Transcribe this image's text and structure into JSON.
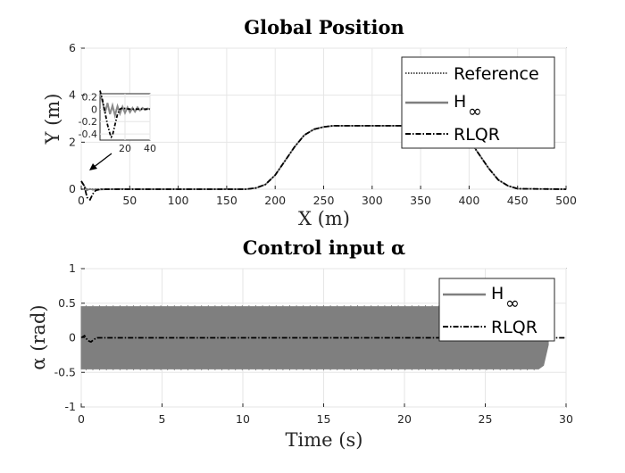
{
  "chart_data": [
    {
      "type": "line",
      "title": "Global Position",
      "xlabel": "X (m)",
      "ylabel": "Y (m)",
      "xlim": [
        0,
        500
      ],
      "ylim": [
        0,
        6
      ],
      "xticks": [
        "0",
        "50",
        "100",
        "150",
        "200",
        "250",
        "300",
        "350",
        "400",
        "450",
        "500"
      ],
      "yticks": [
        "0",
        "2",
        "4",
        "6"
      ],
      "grid": true,
      "legend_position": "top-right",
      "series": [
        {
          "name": "Reference",
          "style": "dotted",
          "color": "#555555",
          "x": [
            0,
            150,
            170,
            180,
            190,
            200,
            210,
            220,
            230,
            240,
            250,
            260,
            300,
            350,
            370,
            380,
            390,
            400,
            410,
            420,
            430,
            440,
            450,
            500
          ],
          "y": [
            0,
            0,
            0,
            0.05,
            0.2,
            0.6,
            1.2,
            1.8,
            2.3,
            2.55,
            2.65,
            2.7,
            2.7,
            2.7,
            2.7,
            2.65,
            2.5,
            2.1,
            1.5,
            0.9,
            0.4,
            0.15,
            0.02,
            0
          ]
        },
        {
          "name": "H",
          "name_subscript": "∞",
          "style": "solid",
          "color": "#7f7f7f",
          "x": [
            0,
            3,
            6,
            9,
            12,
            15,
            20,
            30,
            40,
            60,
            100,
            150,
            170,
            180,
            190,
            200,
            210,
            220,
            230,
            240,
            250,
            260,
            300,
            350,
            370,
            380,
            390,
            400,
            410,
            420,
            430,
            440,
            450,
            500
          ],
          "y": [
            0.3,
            0.15,
            -0.05,
            0.02,
            -0.03,
            0.01,
            -0.02,
            0,
            0.01,
            0,
            0,
            0,
            0,
            0.05,
            0.2,
            0.6,
            1.2,
            1.8,
            2.3,
            2.55,
            2.65,
            2.7,
            2.7,
            2.7,
            2.7,
            2.65,
            2.5,
            2.1,
            1.5,
            0.9,
            0.4,
            0.15,
            0.02,
            0
          ]
        },
        {
          "name": "RLQR",
          "style": "dashdot",
          "color": "#000000",
          "x": [
            0,
            3,
            6,
            9,
            12,
            15,
            20,
            30,
            40,
            60,
            100,
            150,
            170,
            180,
            190,
            200,
            210,
            220,
            230,
            240,
            250,
            260,
            300,
            350,
            370,
            380,
            390,
            400,
            410,
            420,
            430,
            440,
            450,
            500
          ],
          "y": [
            0.35,
            0.15,
            -0.35,
            -0.45,
            -0.2,
            -0.05,
            0,
            0,
            0,
            0,
            0,
            0,
            0,
            0.05,
            0.2,
            0.6,
            1.2,
            1.8,
            2.3,
            2.55,
            2.65,
            2.7,
            2.7,
            2.7,
            2.7,
            2.65,
            2.5,
            2.1,
            1.5,
            0.9,
            0.4,
            0.15,
            0.02,
            0
          ]
        }
      ],
      "inset": {
        "xlim": [
          0,
          40
        ],
        "ylim": [
          -0.5,
          0.25
        ],
        "xticks": [
          "20",
          "40"
        ],
        "yticks": [
          "0.2",
          "0",
          "-0.2",
          "-0.4"
        ],
        "series": [
          {
            "name": "H∞",
            "x": [
              0,
              2,
              4,
              6,
              8,
              10,
              12,
              14,
              16,
              18,
              20,
              22,
              24,
              26,
              28,
              30,
              32,
              34,
              36,
              38,
              40
            ],
            "y": [
              0.25,
              0.12,
              -0.06,
              0.1,
              -0.08,
              0.06,
              -0.1,
              0.05,
              -0.07,
              0.04,
              -0.06,
              0.03,
              -0.05,
              0.02,
              -0.04,
              0.03,
              -0.02,
              0.02,
              -0.01,
              0.01,
              0
            ]
          },
          {
            "name": "RLQR",
            "x": [
              0,
              2,
              4,
              6,
              8,
              9,
              10,
              12,
              14,
              16,
              18,
              20,
              24,
              28,
              32,
              36,
              40
            ],
            "y": [
              0.3,
              0.15,
              -0.05,
              -0.25,
              -0.4,
              -0.45,
              -0.42,
              -0.25,
              -0.08,
              0,
              0.02,
              0.01,
              0,
              0,
              0,
              0,
              0
            ]
          }
        ]
      }
    },
    {
      "type": "line",
      "title": "Control input α",
      "xlabel": "Time (s)",
      "ylabel": "α (rad)",
      "xlim": [
        0,
        30
      ],
      "ylim": [
        -1,
        1
      ],
      "xticks": [
        "0",
        "5",
        "10",
        "15",
        "20",
        "25",
        "30"
      ],
      "yticks": [
        "1",
        "0.5",
        "0",
        "-0.5",
        "-1"
      ],
      "grid": true,
      "legend_position": "top-right",
      "series": [
        {
          "name": "H",
          "name_subscript": "∞",
          "style": "solid",
          "color": "#7f7f7f",
          "envelope": {
            "x": [
              0,
              28.3,
              28.6,
              28.9
            ],
            "upper": [
              0.45,
              0.45,
              0.4,
              0.1
            ],
            "lower": [
              -0.45,
              -0.45,
              -0.4,
              -0.1
            ]
          },
          "spike_peak": 0.47
        },
        {
          "name": "RLQR",
          "style": "dashdot",
          "color": "#000000",
          "x": [
            0,
            0.2,
            0.4,
            0.6,
            0.8,
            1.0,
            1.5,
            2,
            30
          ],
          "y": [
            0,
            0.03,
            -0.04,
            -0.06,
            -0.02,
            0,
            0,
            0,
            0
          ]
        }
      ]
    }
  ]
}
